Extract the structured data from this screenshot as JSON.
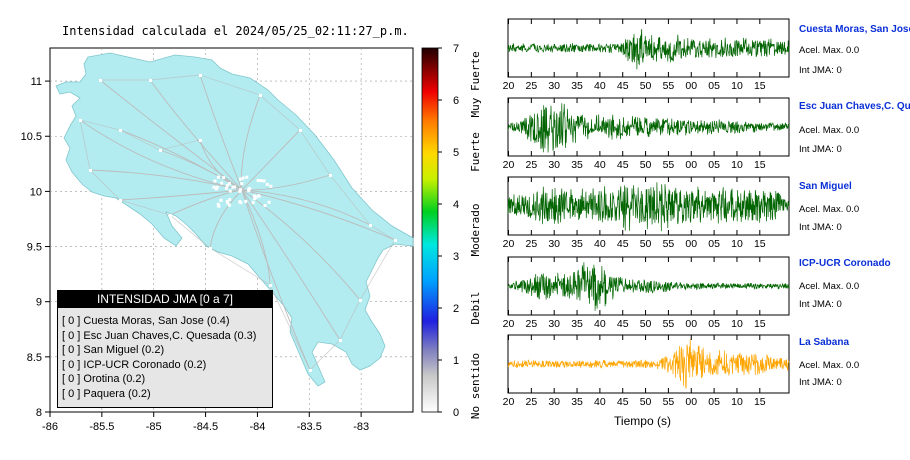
{
  "title": "Intensidad calculada el 2024/05/25_02:11:27_p.m.",
  "map": {
    "x_ticks": [
      -86,
      -85.5,
      -85,
      -84.5,
      -84,
      -83.5,
      -83
    ],
    "y_ticks": [
      8,
      8.5,
      9,
      9.5,
      10,
      10.5,
      11
    ],
    "xlim": [
      -86,
      -82.5
    ],
    "ylim": [
      8,
      11.3
    ],
    "land_color": "#b3ecf0"
  },
  "colorbar": {
    "ticks": [
      0,
      1,
      2,
      3,
      4,
      5,
      6,
      7
    ],
    "labels": [
      "No sentido",
      "Debil",
      "Moderado",
      "Fuerte",
      "Muy Fuerte"
    ]
  },
  "legend": {
    "title": "INTENSIDAD JMA [0 a 7]",
    "items": [
      "[ 0 ]  Cuesta Moras, San Jose (0.4)",
      "[ 0 ]  Esc Juan Chaves,C. Quesada (0.3)",
      "[ 0 ]  San Miguel (0.2)",
      "[ 0 ]  ICP-UCR Coronado (0.2)",
      "[ 0 ]  Orotina (0.2)",
      "[ 0 ]  Paquera (0.2)"
    ]
  },
  "chart_data": {
    "type": "line",
    "x_ticks": [
      "20",
      "25",
      "30",
      "35",
      "40",
      "45",
      "50",
      "55",
      "00",
      "05",
      "10",
      "15"
    ],
    "xlabel": "Tiempo (s)",
    "series": [
      {
        "name": "Cuesta Moras, San Jose",
        "color": "#006400",
        "base": 0.18,
        "bursts": [
          [
            47,
            1.0,
            1.5
          ],
          [
            53,
            0.45,
            6
          ],
          [
            70,
            0.25,
            12
          ]
        ],
        "acel": "Acel. Max. 0.0",
        "int": "Int JMA: 0"
      },
      {
        "name": "Esc Juan Chaves,C. Quesada",
        "color": "#006400",
        "base": 0.15,
        "bursts": [
          [
            29,
            0.95,
            5
          ],
          [
            42,
            0.35,
            9
          ],
          [
            60,
            0.2,
            12
          ]
        ],
        "acel": "Acel. Max. 0.0",
        "int": "Int JMA: 0"
      },
      {
        "name": "San Miguel",
        "color": "#006400",
        "base": 0.35,
        "bursts": [
          [
            50,
            0.75,
            10
          ],
          [
            30,
            0.45,
            8
          ],
          [
            70,
            0.4,
            10
          ]
        ],
        "acel": "Acel. Max. 0.0",
        "int": "Int JMA: 0"
      },
      {
        "name": "ICP-UCR Coronado",
        "color": "#006400",
        "base": 0.12,
        "bursts": [
          [
            38,
            0.95,
            4
          ],
          [
            28,
            0.45,
            5
          ],
          [
            48,
            0.2,
            8
          ]
        ],
        "acel": "Acel. Max. 0.0",
        "int": "Int JMA: 0"
      },
      {
        "name": "La Sabana",
        "color": "#ffa500",
        "base": 0.16,
        "bursts": [
          [
            58,
            1.0,
            1.5
          ],
          [
            60,
            0.45,
            6
          ],
          [
            70,
            0.28,
            10
          ]
        ],
        "acel": "Acel. Max. 0.0",
        "int": "Int JMA: 0"
      }
    ]
  }
}
